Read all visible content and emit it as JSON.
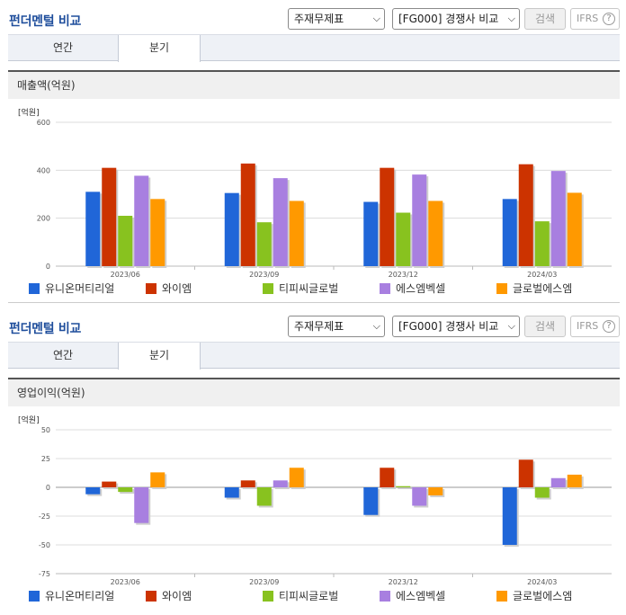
{
  "colors": {
    "series": [
      "#2066d8",
      "#cc3300",
      "#88c21f",
      "#a87fe0",
      "#ff9900"
    ],
    "title": "#1f4e9c",
    "tab_bg": "#eef1f6"
  },
  "panels": [
    {
      "title": "펀더멘털 비교",
      "select1": "주재무제표",
      "select2": "[FG000] 경쟁사 비교",
      "search_label": "검색",
      "ifrs_label": "IFRS",
      "help_icon": "?",
      "tabs": [
        "연간",
        "분기"
      ],
      "active_tab": "분기",
      "subtitle": "매출액(억원)",
      "unit": "[억원]"
    },
    {
      "title": "펀더멘털 비교",
      "select1": "주재무제표",
      "select2": "[FG000] 경쟁사 비교",
      "search_label": "검색",
      "ifrs_label": "IFRS",
      "help_icon": "?",
      "tabs": [
        "연간",
        "분기"
      ],
      "active_tab": "분기",
      "subtitle": "영업이익(억원)",
      "unit": "[억원]"
    }
  ],
  "chart_data": [
    {
      "type": "bar",
      "title": "매출액(억원)",
      "categories": [
        "2023/06",
        "2023/09",
        "2023/12",
        "2024/03"
      ],
      "ylim": [
        0,
        600
      ],
      "yticks": [
        0,
        200,
        400,
        600
      ],
      "ylabel": "[억원]",
      "series": [
        {
          "name": "유니온머티리얼",
          "values": [
            310,
            305,
            268,
            280
          ]
        },
        {
          "name": "와이엠",
          "values": [
            410,
            428,
            410,
            425
          ]
        },
        {
          "name": "티피씨글로벌",
          "values": [
            210,
            183,
            223,
            187
          ]
        },
        {
          "name": "에스엠벡셀",
          "values": [
            377,
            367,
            382,
            397
          ]
        },
        {
          "name": "글로벌에스엠",
          "values": [
            280,
            272,
            272,
            306
          ]
        }
      ],
      "grid": true,
      "legend": "bottom"
    },
    {
      "type": "bar",
      "title": "영업이익(억원)",
      "categories": [
        "2023/06",
        "2023/09",
        "2023/12",
        "2024/03"
      ],
      "ylim": [
        -75,
        50
      ],
      "yticks": [
        -75,
        -50,
        -25,
        0,
        25,
        50
      ],
      "ylabel": "[억원]",
      "series": [
        {
          "name": "유니온머티리얼",
          "values": [
            -6,
            -9,
            -24,
            -50
          ]
        },
        {
          "name": "와이엠",
          "values": [
            5,
            6,
            17,
            24
          ]
        },
        {
          "name": "티피씨글로벌",
          "values": [
            -4,
            -16,
            1,
            -9
          ]
        },
        {
          "name": "에스엠벡셀",
          "values": [
            -31,
            6,
            -16,
            8
          ]
        },
        {
          "name": "글로벌에스엠",
          "values": [
            13,
            17,
            -7,
            11
          ]
        }
      ],
      "grid": true,
      "legend": "bottom"
    }
  ]
}
